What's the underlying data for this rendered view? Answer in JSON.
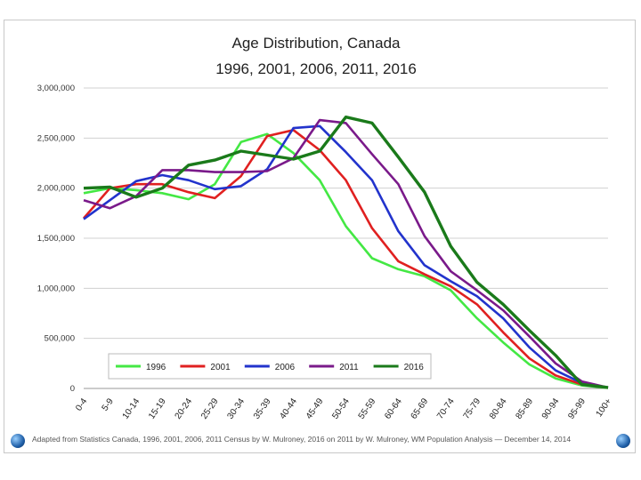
{
  "chart_data": {
    "type": "line",
    "title": [
      "Age Distribution, Canada",
      "1996, 2001, 2006, 2011, 2016"
    ],
    "xlabel": "",
    "ylabel": "",
    "ylim": [
      0,
      3000000
    ],
    "yticks": [
      "0",
      "500,000",
      "1,000,000",
      "1,500,000",
      "2,000,000",
      "2,500,000",
      "3,000,000"
    ],
    "categories": [
      "0-4",
      "5-9",
      "10-14",
      "15-19",
      "20-24",
      "25-29",
      "30-34",
      "35-39",
      "40-44",
      "45-49",
      "50-54",
      "55-59",
      "60-64",
      "65-69",
      "70-74",
      "75-79",
      "80-84",
      "85-89",
      "90-94",
      "95-99",
      "100+"
    ],
    "series": [
      {
        "name": "1996",
        "color": "#44e844",
        "values": [
          1950000,
          2000000,
          1980000,
          1950000,
          1890000,
          2040000,
          2460000,
          2540000,
          2350000,
          2080000,
          1620000,
          1300000,
          1190000,
          1120000,
          980000,
          700000,
          460000,
          240000,
          100000,
          30000,
          5000
        ]
      },
      {
        "name": "2001",
        "color": "#e02020",
        "values": [
          1700000,
          2000000,
          2040000,
          2040000,
          1960000,
          1900000,
          2120000,
          2520000,
          2580000,
          2380000,
          2080000,
          1600000,
          1270000,
          1140000,
          1020000,
          840000,
          560000,
          300000,
          130000,
          40000,
          7000
        ]
      },
      {
        "name": "2006",
        "color": "#2233cc",
        "values": [
          1690000,
          1880000,
          2070000,
          2130000,
          2080000,
          1990000,
          2020000,
          2190000,
          2600000,
          2620000,
          2360000,
          2080000,
          1570000,
          1230000,
          1070000,
          920000,
          700000,
          410000,
          180000,
          55000,
          9000
        ]
      },
      {
        "name": "2011",
        "color": "#7a1a8a",
        "values": [
          1880000,
          1800000,
          1920000,
          2180000,
          2180000,
          2160000,
          2160000,
          2170000,
          2300000,
          2680000,
          2650000,
          2340000,
          2040000,
          1520000,
          1170000,
          980000,
          780000,
          520000,
          250000,
          70000,
          9000
        ]
      },
      {
        "name": "2016",
        "color": "#1a7a1a",
        "values": [
          2000000,
          2010000,
          1910000,
          2000000,
          2230000,
          2280000,
          2370000,
          2330000,
          2290000,
          2370000,
          2710000,
          2650000,
          2310000,
          1960000,
          1420000,
          1060000,
          840000,
          580000,
          330000,
          40000,
          10000
        ]
      }
    ],
    "legend_position": "bottom-inside",
    "grid": true
  },
  "footer": {
    "credit": "Adapted from Statistics Canada, 1996, 2001, 2006, 2011 Census by W. Mulroney, 2016 on 2011 by W. Mulroney, WM Population Analysis — December 14, 2014"
  }
}
